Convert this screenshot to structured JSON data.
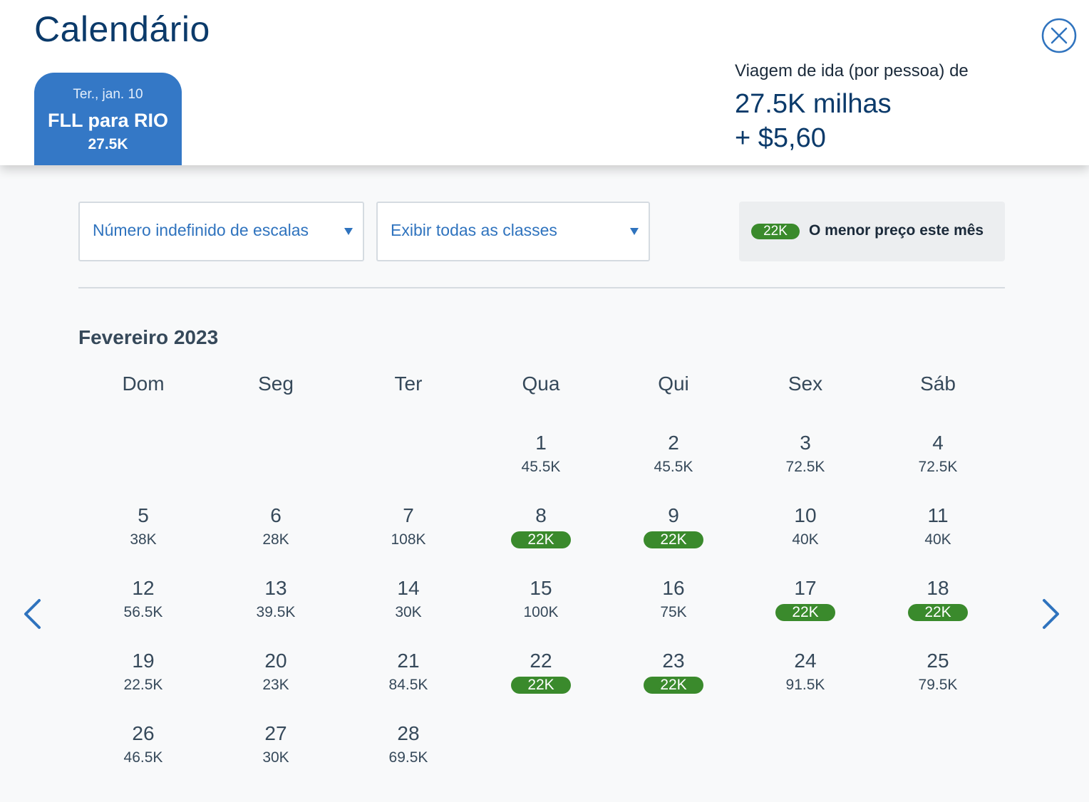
{
  "header": {
    "title": "Calendário",
    "close_icon": "close-circle-icon"
  },
  "trip_tab": {
    "date": "Ter., jan. 10",
    "route": "FLL para RIO",
    "price": "27.5K"
  },
  "fare_summary": {
    "label": "Viagem de ida (por pessoa) de",
    "miles": "27.5K milhas",
    "cash": "+ $5,60"
  },
  "filters": {
    "stops": {
      "value": "Número indefinido de escalas"
    },
    "cabin": {
      "value": "Exibir todas as classes"
    }
  },
  "legend": {
    "badge": "22K",
    "text": "O menor preço este mês"
  },
  "calendar": {
    "month": "Fevereiro 2023",
    "weekdays": [
      "Dom",
      "Seg",
      "Ter",
      "Qua",
      "Qui",
      "Sex",
      "Sáb"
    ],
    "first_weekday_index": 3,
    "days": [
      {
        "day": "1",
        "price": "45.5K",
        "lowest": false
      },
      {
        "day": "2",
        "price": "45.5K",
        "lowest": false
      },
      {
        "day": "3",
        "price": "72.5K",
        "lowest": false
      },
      {
        "day": "4",
        "price": "72.5K",
        "lowest": false
      },
      {
        "day": "5",
        "price": "38K",
        "lowest": false
      },
      {
        "day": "6",
        "price": "28K",
        "lowest": false
      },
      {
        "day": "7",
        "price": "108K",
        "lowest": false
      },
      {
        "day": "8",
        "price": "22K",
        "lowest": true
      },
      {
        "day": "9",
        "price": "22K",
        "lowest": true
      },
      {
        "day": "10",
        "price": "40K",
        "lowest": false
      },
      {
        "day": "11",
        "price": "40K",
        "lowest": false
      },
      {
        "day": "12",
        "price": "56.5K",
        "lowest": false
      },
      {
        "day": "13",
        "price": "39.5K",
        "lowest": false
      },
      {
        "day": "14",
        "price": "30K",
        "lowest": false
      },
      {
        "day": "15",
        "price": "100K",
        "lowest": false
      },
      {
        "day": "16",
        "price": "75K",
        "lowest": false
      },
      {
        "day": "17",
        "price": "22K",
        "lowest": true
      },
      {
        "day": "18",
        "price": "22K",
        "lowest": true
      },
      {
        "day": "19",
        "price": "22.5K",
        "lowest": false
      },
      {
        "day": "20",
        "price": "23K",
        "lowest": false
      },
      {
        "day": "21",
        "price": "84.5K",
        "lowest": false
      },
      {
        "day": "22",
        "price": "22K",
        "lowest": true
      },
      {
        "day": "23",
        "price": "22K",
        "lowest": true
      },
      {
        "day": "24",
        "price": "91.5K",
        "lowest": false
      },
      {
        "day": "25",
        "price": "79.5K",
        "lowest": false
      },
      {
        "day": "26",
        "price": "46.5K",
        "lowest": false
      },
      {
        "day": "27",
        "price": "30K",
        "lowest": false
      },
      {
        "day": "28",
        "price": "69.5K",
        "lowest": false
      }
    ]
  },
  "navigation": {
    "prev_icon": "chevron-left-icon",
    "next_icon": "chevron-right-icon"
  },
  "colors": {
    "primary_blue": "#3478c6",
    "title_navy": "#0b3a6a",
    "lowest_green": "#3a8a2c",
    "text_gray": "#36495a"
  }
}
